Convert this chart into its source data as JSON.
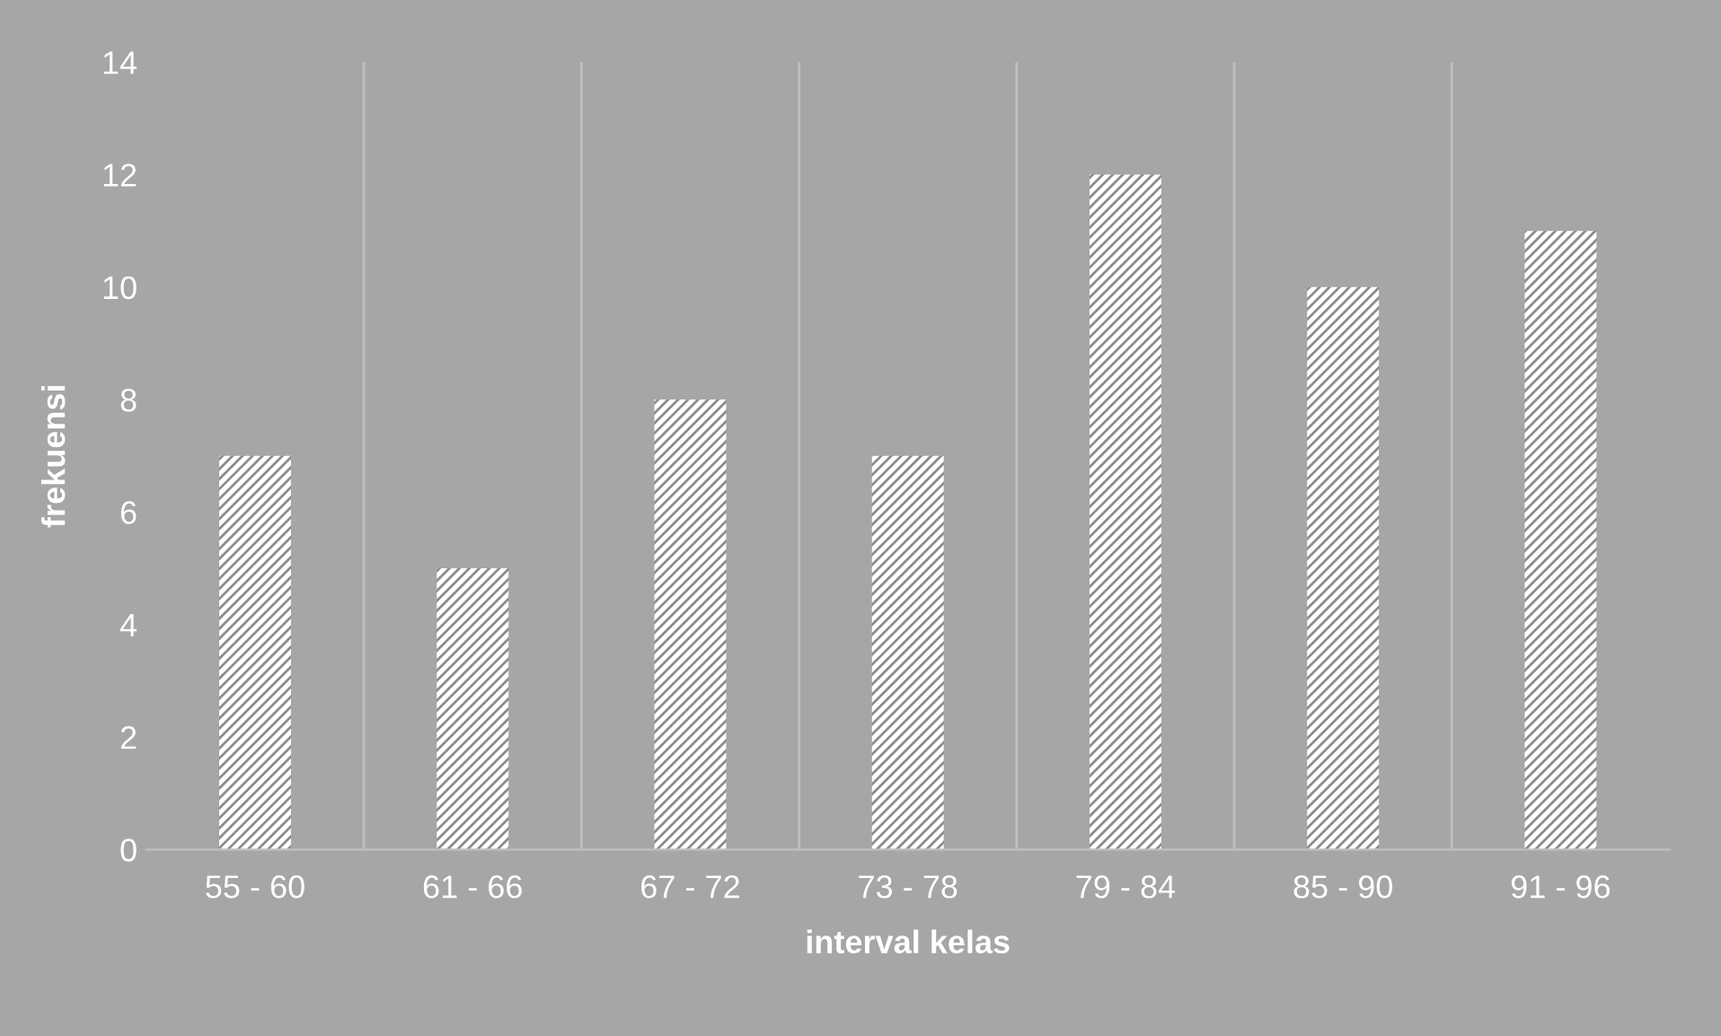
{
  "chart_data": {
    "type": "bar",
    "xlabel": "interval kelas",
    "ylabel": "frekuensi",
    "categories": [
      "55 - 60",
      "61 - 66",
      "67 - 72",
      "73 - 78",
      "79 - 84",
      "85 - 90",
      "91 - 96"
    ],
    "values": [
      7,
      5,
      8,
      7,
      12,
      10,
      11
    ],
    "color": "#ffffff",
    "ylim": [
      0,
      14
    ],
    "yticks": [
      0,
      2,
      4,
      6,
      8,
      10,
      12,
      14
    ],
    "grid": "x"
  }
}
